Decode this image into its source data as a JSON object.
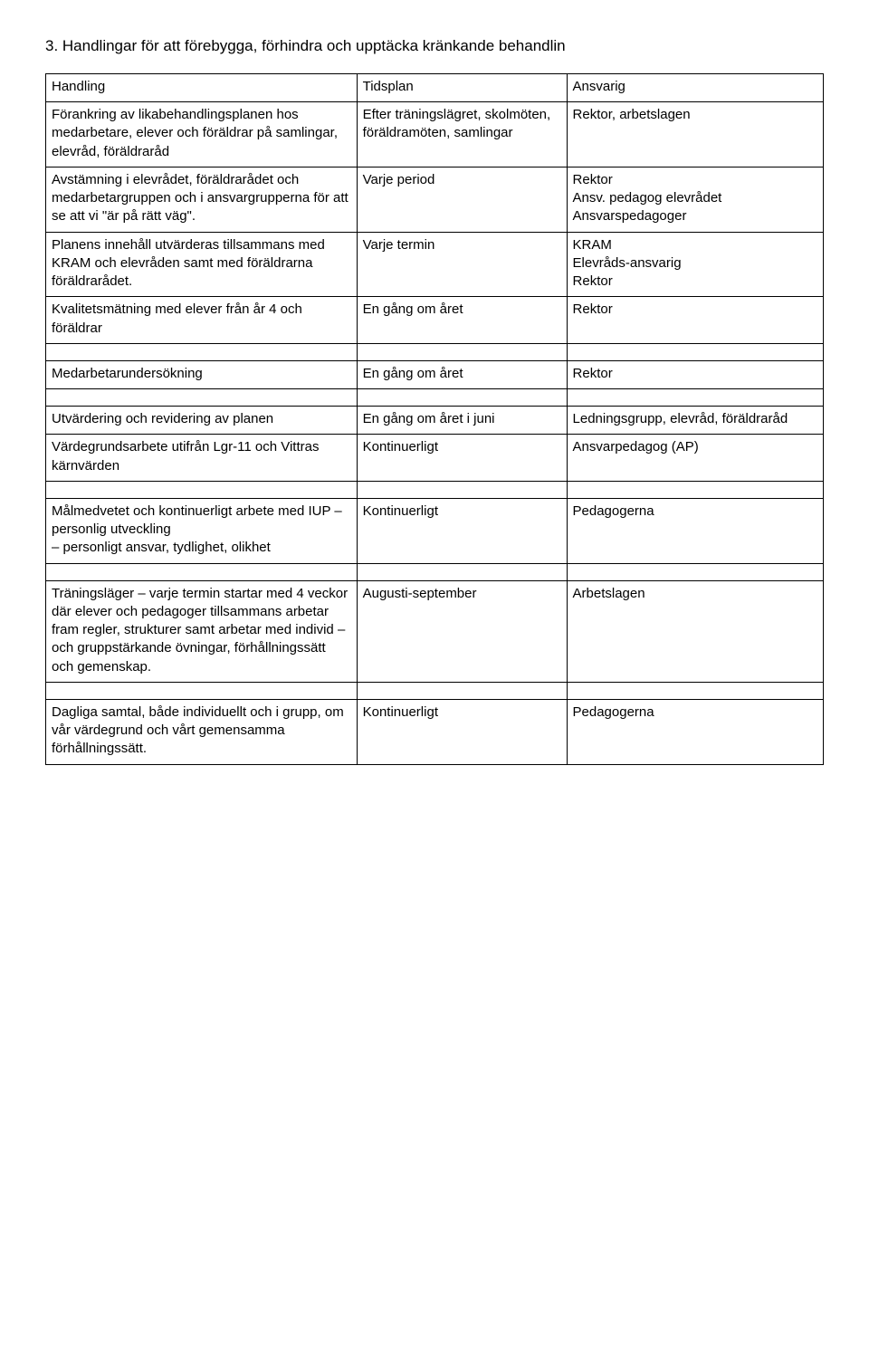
{
  "heading": "3. Handlingar för att förebygga, förhindra och upptäcka kränkande behandlin",
  "table": {
    "header": {
      "c1": "Handling",
      "c2": "Tidsplan",
      "c3": "Ansvarig"
    },
    "rows": [
      {
        "c1": "Förankring av likabehandlingsplanen hos medarbetare, elever och föräldrar på samlingar, elevråd, föräldraråd",
        "c2": "Efter träningslägret, skolmöten, föräldramöten, samlingar",
        "c3": "Rektor, arbetslagen"
      },
      {
        "c1": "Avstämning i elevrådet, föräldrarådet och medarbetargruppen och i ansvargrupperna för att se att vi \"är på rätt väg\".",
        "c2": "Varje period",
        "c3": "Rektor\nAnsv. pedagog elevrådet\nAnsvarspedagoger"
      },
      {
        "c1": "Planens innehåll utvärderas tillsammans med KRAM och elevråden samt med föräldrarna föräldrarådet.",
        "c2": "Varje termin",
        "c3": "KRAM\nElevråds-ansvarig\nRektor"
      },
      {
        "c1": "Kvalitetsmätning med elever från år 4 och föräldrar",
        "c2": "En gång om året",
        "c3": "Rektor"
      },
      {
        "spacer": true
      },
      {
        "c1": "Medarbetarundersökning",
        "c2": "En gång om året",
        "c3": "Rektor"
      },
      {
        "spacer": true
      },
      {
        "c1": "Utvärdering och revidering av planen",
        "c2": "En gång om året i juni",
        "c3": "Ledningsgrupp, elevråd, föräldraråd"
      },
      {
        "c1": "Värdegrundsarbete utifrån Lgr-11 och     Vittras kärnvärden",
        "c2": "Kontinuerligt",
        "c3": "Ansvarpedagog (AP)"
      },
      {
        "spacer": true
      },
      {
        "c1": "Målmedvetet och kontinuerligt arbete med IUP – personlig utveckling\n– personligt ansvar, tydlighet, olikhet",
        "c2": "Kontinuerligt",
        "c3": "Pedagogerna"
      },
      {
        "spacer": true
      },
      {
        "c1": "Träningsläger – varje termin startar med 4 veckor där elever och pedagoger tillsammans arbetar fram regler, strukturer samt arbetar med individ – och gruppstärkande övningar, förhållningssätt och gemenskap.",
        "c2": "Augusti-september",
        "c3": "Arbetslagen"
      },
      {
        "spacer": true
      },
      {
        "c1": "Dagliga samtal, både individuellt och i grupp, om vår värdegrund och vårt gemensamma förhållningssätt.",
        "c2": "Kontinuerligt",
        "c3": "Pedagogerna"
      }
    ]
  }
}
